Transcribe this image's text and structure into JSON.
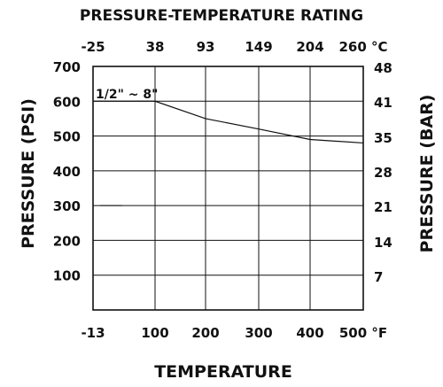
{
  "chart_data": {
    "type": "line",
    "title": "PRESSURE-TEMPERATURE RATING",
    "xlabel": "TEMPERATURE",
    "ylabel": "PRESSURE (PSI)",
    "ylabel_right": "PRESSURE (BAR)",
    "x_unit_bottom": "°F",
    "x_unit_top": "°C",
    "x_ticks_bottom": [
      "-13",
      "100",
      "200",
      "300",
      "400",
      "500"
    ],
    "x_ticks_top": [
      "-25",
      "38",
      "93",
      "149",
      "204",
      "260"
    ],
    "y_ticks_left": [
      "100",
      "200",
      "300",
      "400",
      "500",
      "600",
      "700"
    ],
    "y_ticks_right": [
      "7",
      "14",
      "21",
      "28",
      "35",
      "41",
      "48"
    ],
    "xlim": [
      -13,
      500
    ],
    "ylim": [
      0,
      700
    ],
    "grid": true,
    "series": [
      {
        "name": "1/2\" ~ 8\"",
        "x": [
          -13,
          100,
          200,
          300,
          400,
          500
        ],
        "y": [
          600,
          600,
          550,
          520,
          490,
          480
        ]
      }
    ],
    "annotations": [
      {
        "x": [
          -13,
          40
        ],
        "y": [
          300,
          300
        ]
      }
    ]
  }
}
